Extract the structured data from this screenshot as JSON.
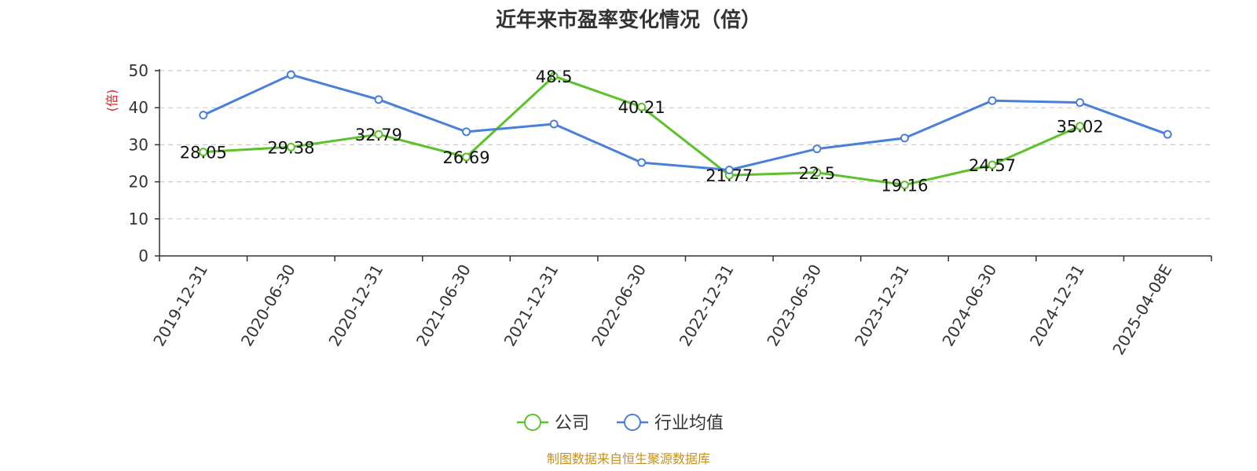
{
  "chart_data": {
    "type": "line",
    "title": "近年来市盈率变化情况（倍）",
    "ylabel": "(倍)",
    "xlabel": "",
    "ylim": [
      0,
      50
    ],
    "yticks": [
      0,
      10,
      20,
      30,
      40,
      50
    ],
    "grid": true,
    "legend_position": "bottom-center",
    "categories": [
      "2019-12-31",
      "2020-06-30",
      "2020-12-31",
      "2021-06-30",
      "2021-12-31",
      "2022-06-30",
      "2022-12-31",
      "2023-06-30",
      "2023-12-31",
      "2024-06-30",
      "2024-12-31",
      "2025-04-08E"
    ],
    "series": [
      {
        "name": "公司",
        "color": "#5bc22a",
        "values": [
          28.05,
          29.38,
          32.79,
          26.69,
          48.5,
          40.21,
          21.77,
          22.5,
          19.16,
          24.57,
          35.02,
          null
        ],
        "labels": [
          "28.05",
          "29.38",
          "32.79",
          "26.69",
          "48.5",
          "40.21",
          "21.77",
          "22.5",
          "19.16",
          "24.57",
          "35.02",
          null
        ]
      },
      {
        "name": "行业均值",
        "color": "#4a7fdc",
        "values": [
          38.0,
          48.9,
          42.2,
          33.5,
          35.6,
          25.2,
          23.2,
          28.9,
          31.8,
          41.9,
          41.4,
          32.8
        ]
      }
    ],
    "source": "制图数据来自恒生聚源数据库",
    "ylabel_color": "#e02020",
    "source_color": "#c8901a"
  }
}
